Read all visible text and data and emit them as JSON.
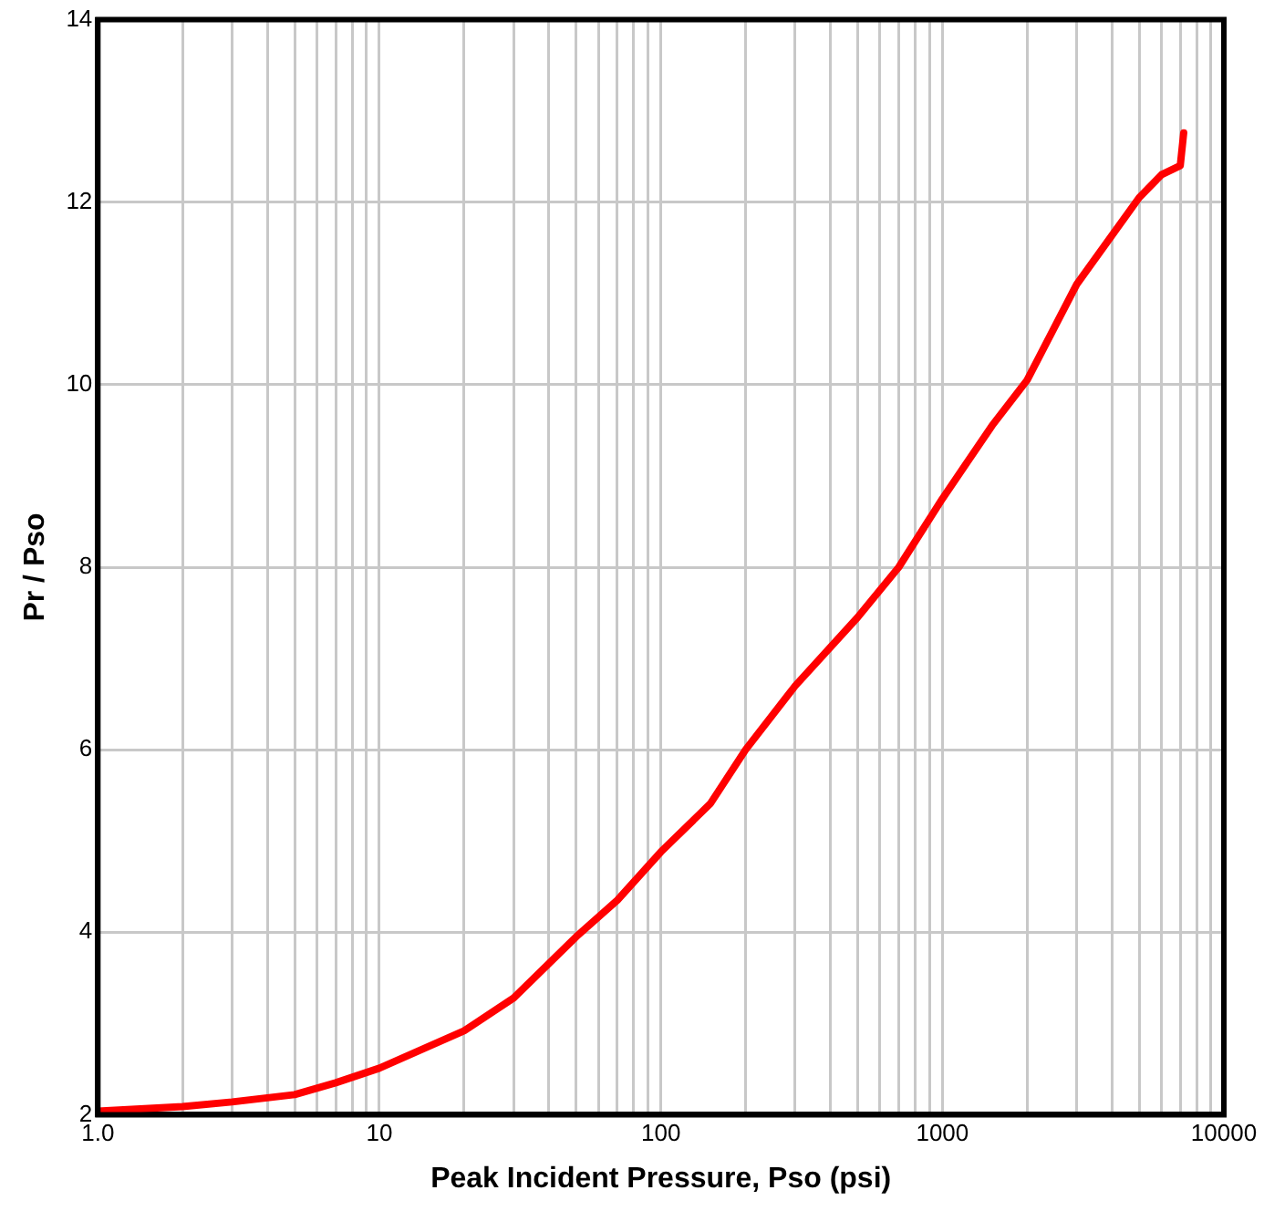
{
  "chart_data": {
    "type": "line",
    "xlabel": "Peak Incident Pressure, Pso (psi)",
    "ylabel": "Pr / Pso",
    "log": "x",
    "grid": true,
    "legend": false,
    "marker": "none",
    "line_style": "solid",
    "x": [
      1,
      2,
      3,
      5,
      7,
      10,
      15,
      20,
      30,
      50,
      70,
      100,
      150,
      200,
      300,
      500,
      700,
      1000,
      1500,
      2000,
      3000,
      5000,
      6000,
      7000,
      7200
    ],
    "series": [
      {
        "color": "#ff0000",
        "values": [
          2.04,
          2.09,
          2.14,
          2.22,
          2.35,
          2.51,
          2.75,
          2.92,
          3.28,
          3.95,
          4.35,
          4.88,
          5.41,
          6.0,
          6.7,
          7.45,
          8.0,
          8.75,
          9.55,
          10.05,
          11.1,
          12.05,
          12.3,
          12.4,
          12.76
        ]
      }
    ],
    "xlim": [
      1,
      10000
    ],
    "xticks": [
      {
        "value": 1,
        "label": "1.0"
      },
      {
        "value": 2,
        "label": null
      },
      {
        "value": 3,
        "label": null
      },
      {
        "value": 4,
        "label": null
      },
      {
        "value": 5,
        "label": null
      },
      {
        "value": 6,
        "label": null
      },
      {
        "value": 7,
        "label": null
      },
      {
        "value": 8,
        "label": null
      },
      {
        "value": 9,
        "label": null
      },
      10,
      {
        "value": 20,
        "label": null
      },
      {
        "value": 30,
        "label": null
      },
      {
        "value": 40,
        "label": null
      },
      {
        "value": 50,
        "label": null
      },
      {
        "value": 60,
        "label": null
      },
      {
        "value": 70,
        "label": null
      },
      {
        "value": 80,
        "label": null
      },
      {
        "value": 90,
        "label": null
      },
      100,
      {
        "value": 200,
        "label": null
      },
      {
        "value": 300,
        "label": null
      },
      {
        "value": 400,
        "label": null
      },
      {
        "value": 500,
        "label": null
      },
      {
        "value": 600,
        "label": null
      },
      {
        "value": 700,
        "label": null
      },
      {
        "value": 800,
        "label": null
      },
      {
        "value": 900,
        "label": null
      },
      1000,
      {
        "value": 2000,
        "label": null
      },
      {
        "value": 3000,
        "label": null
      },
      {
        "value": 4000,
        "label": null
      },
      {
        "value": 5000,
        "label": null
      },
      {
        "value": 6000,
        "label": null
      },
      {
        "value": 7000,
        "label": null
      },
      {
        "value": 8000,
        "label": null
      },
      {
        "value": 9000,
        "label": null
      },
      10000
    ],
    "ylim": [
      2,
      14
    ],
    "yticks": [
      2,
      4,
      6,
      8,
      10,
      12,
      14
    ]
  }
}
